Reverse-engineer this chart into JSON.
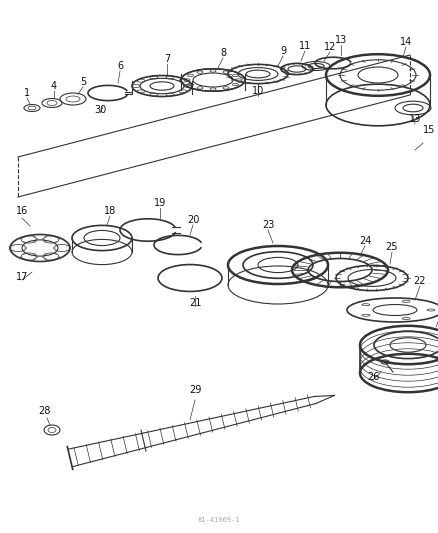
{
  "bg_color": "#ffffff",
  "line_color": "#333333",
  "label_color": "#111111",
  "watermark": "81-41069-1",
  "fig_width": 4.38,
  "fig_height": 5.33,
  "dpi": 100
}
